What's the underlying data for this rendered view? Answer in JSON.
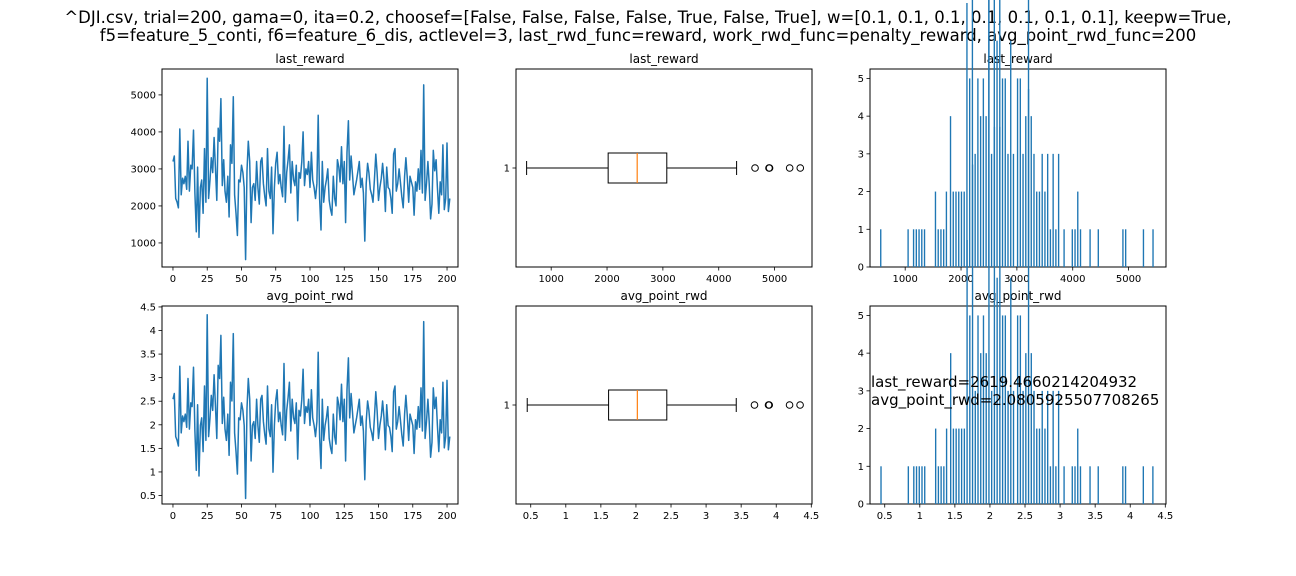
{
  "suptitle_line1": "^DJI.csv, trial=200, gama=0, ita=0.2, choosef=[False, False, False, False, True, False, True], w=[0.1, 0.1, 0.1, 0.1, 0.1, 0.1, 0.1], keepw=True,",
  "suptitle_line2": "f5=feature_5_conti, f6=feature_6_dis, actlevel=3, last_rwd_func=reward, work_rwd_func=penalty_reward, avg_point_rwd_func=200",
  "annotation_line1": "last_reward=2619.4660214204932",
  "annotation_line2": "avg_point_rwd=2.0805925507708265",
  "colors": {
    "series": "#1f77b4",
    "median": "#ff7f0e"
  },
  "chart_data": [
    {
      "type": "line",
      "title": "last_reward",
      "xlim": [
        -8,
        208
      ],
      "ylim": [
        350,
        5700
      ],
      "xticks": [
        0,
        25,
        50,
        75,
        100,
        125,
        150,
        175,
        200
      ],
      "yticks": [
        1000,
        2000,
        3000,
        4000,
        5000
      ],
      "y": [
        3200,
        3350,
        2200,
        2100,
        1950,
        4080,
        2300,
        2750,
        2600,
        2800,
        2450,
        3750,
        2400,
        3100,
        3000,
        4050,
        2350,
        1300,
        3050,
        1150,
        2500,
        2700,
        1800,
        3550,
        2100,
        5450,
        2200,
        2700,
        3300,
        2900,
        3850,
        3050,
        2150,
        4100,
        3750,
        4900,
        2550,
        3250,
        2400,
        2100,
        2800,
        1700,
        3650,
        3150,
        4950,
        2300,
        1800,
        1200,
        2700,
        2650,
        3100,
        2900,
        2500,
        550,
        2950,
        3750,
        3200,
        1550,
        2500,
        2600,
        2150,
        3200,
        2500,
        2050,
        3200,
        3300,
        2600,
        2250,
        2000,
        3550,
        2400,
        2200,
        3050,
        1250,
        2500,
        3150,
        3450,
        2600,
        2850,
        2500,
        2250,
        4150,
        2100,
        2900,
        3250,
        3650,
        2350,
        3200,
        2700,
        2550,
        3100,
        1600,
        2900,
        2750,
        3200,
        4000,
        2550,
        3000,
        2850,
        3200,
        2500,
        3450,
        2700,
        2500,
        2200,
        2600,
        4450,
        2200,
        1350,
        3200,
        2100,
        2500,
        2700,
        3000,
        2150,
        1900,
        1750,
        2800,
        2200,
        2000,
        3250,
        3050,
        2650,
        3600,
        2600,
        3200,
        1550,
        3450,
        4300,
        2700,
        3350,
        2850,
        2300,
        2500,
        2700,
        2950,
        3200,
        2500,
        2750,
        2350,
        1050,
        2600,
        3150,
        2900,
        2450,
        2300,
        2100,
        2700,
        3400,
        2900,
        2150,
        2500,
        2750,
        3150,
        2700,
        1850,
        3050,
        2500,
        2450,
        2200,
        1800,
        3400,
        3550,
        2400,
        2600,
        3000,
        2650,
        2250,
        1950,
        2800,
        3300,
        2750,
        2100,
        2800,
        2650,
        2500,
        1750,
        2650,
        2400,
        3000,
        2450,
        3500,
        2350,
        5270,
        2150,
        2600,
        3200,
        2600,
        1650,
        2050,
        3500,
        2950,
        3250,
        2500,
        1800,
        2650,
        2300,
        3650,
        1900,
        2200,
        3700,
        1850,
        2200
      ]
    },
    {
      "type": "box",
      "title": "last_reward",
      "xlim": [
        370,
        5670
      ],
      "ylim": [
        0.5,
        1.5
      ],
      "xticks": [
        1000,
        2000,
        3000,
        4000,
        5000
      ],
      "ytick_label": "1",
      "whisker_low": 560,
      "q1": 2020,
      "median": 2540,
      "q3": 3070,
      "whisker_high": 4320,
      "outliers": [
        4650,
        4900,
        4910,
        5270,
        5460
      ]
    },
    {
      "type": "histogram",
      "title": "last_reward",
      "xlim": [
        370,
        5670
      ],
      "ylim": [
        0,
        5.25
      ],
      "xticks": [
        1000,
        2000,
        3000,
        4000,
        5000
      ],
      "yticks": [
        0,
        1,
        2,
        3,
        4,
        5
      ],
      "bins": 200
    },
    {
      "type": "line",
      "title": "avg_point_rwd",
      "xlim": [
        -8,
        208
      ],
      "ylim": [
        0.32,
        4.52
      ],
      "xticks": [
        0,
        25,
        50,
        75,
        100,
        125,
        150,
        175,
        200
      ],
      "yticks": [
        0.5,
        1.0,
        1.5,
        2.0,
        2.5,
        3.0,
        3.5,
        4.0,
        4.5
      ],
      "y_scale_from_first": 0.000795
    },
    {
      "type": "box",
      "title": "avg_point_rwd",
      "xlim": [
        0.29,
        4.51
      ],
      "ylim": [
        0.5,
        1.5
      ],
      "xticks": [
        0.5,
        1.0,
        1.5,
        2.0,
        2.5,
        3.0,
        3.5,
        4.0,
        4.5
      ],
      "ytick_label": "1",
      "whisker_low": 0.45,
      "q1": 1.61,
      "median": 2.02,
      "q3": 2.44,
      "whisker_high": 3.43,
      "outliers": [
        3.69,
        3.89,
        3.9,
        4.19,
        4.34
      ]
    },
    {
      "type": "histogram",
      "title": "avg_point_rwd",
      "xlim": [
        0.29,
        4.51
      ],
      "ylim": [
        0,
        5.25
      ],
      "xticks": [
        0.5,
        1.0,
        1.5,
        2.0,
        2.5,
        3.0,
        3.5,
        4.0,
        4.5
      ],
      "yticks": [
        0,
        1,
        2,
        3,
        4,
        5
      ],
      "bins": 200
    }
  ]
}
